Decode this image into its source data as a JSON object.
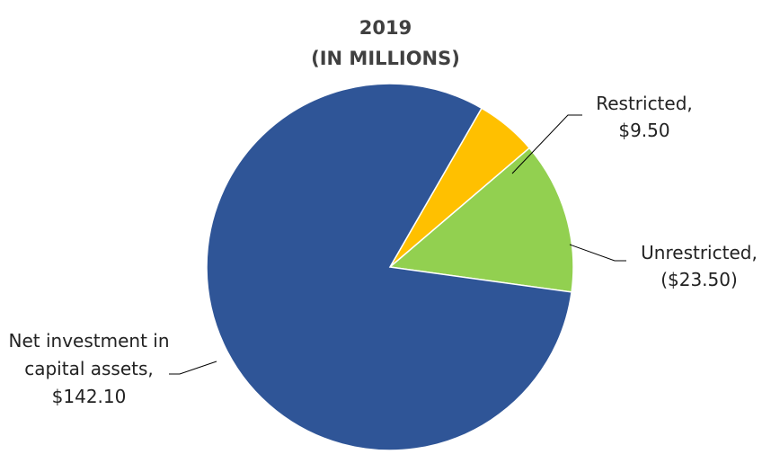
{
  "chart_data": {
    "type": "pie",
    "title": "2019",
    "subtitle": "(IN MILLIONS)",
    "slices": [
      {
        "label": "Restricted,",
        "value_label": "$9.50",
        "value": 9.5,
        "color": "#FFC000"
      },
      {
        "label": "Unrestricted,",
        "value_label": "($23.50)",
        "value": 23.5,
        "color": "#92D050"
      },
      {
        "label": "Net investment in capital assets,",
        "value_label": "$142.10",
        "value": 142.1,
        "color": "#2F5597"
      }
    ],
    "legend": "none"
  }
}
